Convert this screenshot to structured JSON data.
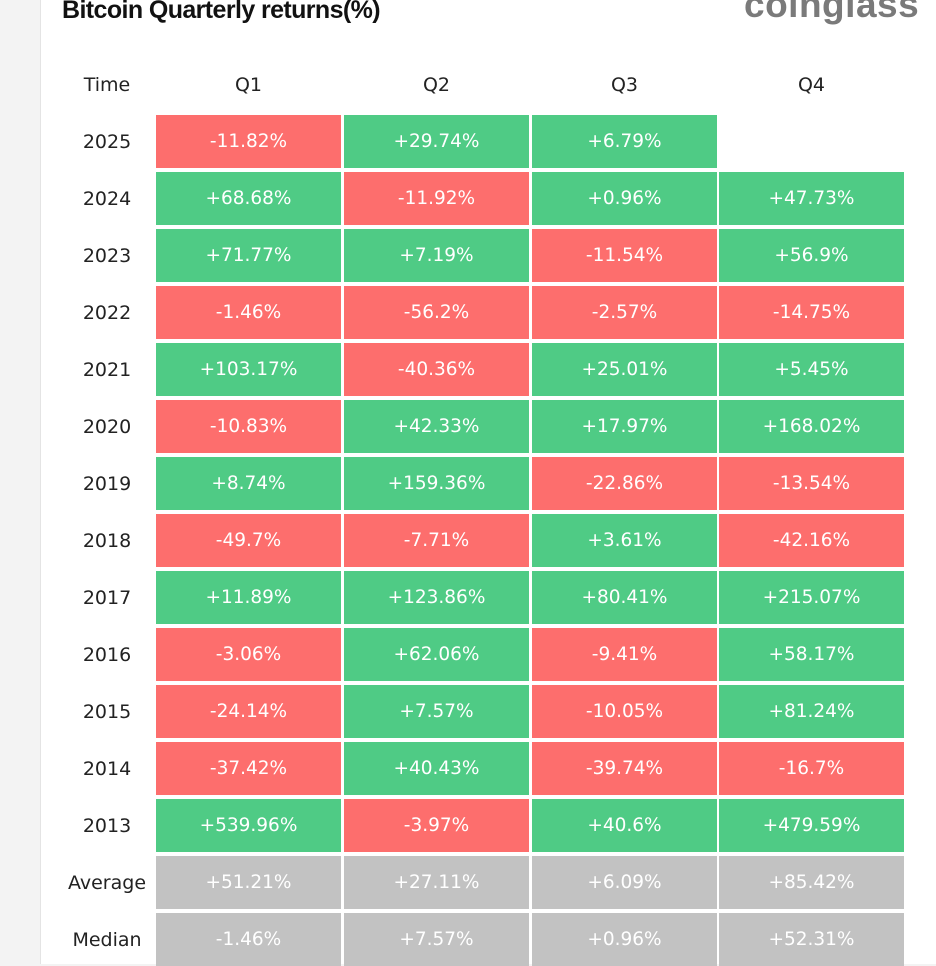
{
  "header": {
    "title": "Bitcoin Quarterly returns(%)",
    "logo_text": "coinglass"
  },
  "colors": {
    "positive": "#4fcb85",
    "negative": "#fd6e6d",
    "summary": "#c2c2c2"
  },
  "chart_data": {
    "type": "table",
    "title": "Bitcoin Quarterly returns(%)",
    "row_header_label": "Time",
    "columns": [
      "Q1",
      "Q2",
      "Q3",
      "Q4"
    ],
    "rows": [
      {
        "label": "2025",
        "cells": [
          "-11.82%",
          "+29.74%",
          "+6.79%",
          null
        ]
      },
      {
        "label": "2024",
        "cells": [
          "+68.68%",
          "-11.92%",
          "+0.96%",
          "+47.73%"
        ]
      },
      {
        "label": "2023",
        "cells": [
          "+71.77%",
          "+7.19%",
          "-11.54%",
          "+56.9%"
        ]
      },
      {
        "label": "2022",
        "cells": [
          "-1.46%",
          "-56.2%",
          "-2.57%",
          "-14.75%"
        ]
      },
      {
        "label": "2021",
        "cells": [
          "+103.17%",
          "-40.36%",
          "+25.01%",
          "+5.45%"
        ]
      },
      {
        "label": "2020",
        "cells": [
          "-10.83%",
          "+42.33%",
          "+17.97%",
          "+168.02%"
        ]
      },
      {
        "label": "2019",
        "cells": [
          "+8.74%",
          "+159.36%",
          "-22.86%",
          "-13.54%"
        ]
      },
      {
        "label": "2018",
        "cells": [
          "-49.7%",
          "-7.71%",
          "+3.61%",
          "-42.16%"
        ]
      },
      {
        "label": "2017",
        "cells": [
          "+11.89%",
          "+123.86%",
          "+80.41%",
          "+215.07%"
        ]
      },
      {
        "label": "2016",
        "cells": [
          "-3.06%",
          "+62.06%",
          "-9.41%",
          "+58.17%"
        ]
      },
      {
        "label": "2015",
        "cells": [
          "-24.14%",
          "+7.57%",
          "-10.05%",
          "+81.24%"
        ]
      },
      {
        "label": "2014",
        "cells": [
          "-37.42%",
          "+40.43%",
          "-39.74%",
          "-16.7%"
        ]
      },
      {
        "label": "2013",
        "cells": [
          "+539.96%",
          "-3.97%",
          "+40.6%",
          "+479.59%"
        ]
      }
    ],
    "summary_rows": [
      {
        "label": "Average",
        "cells": [
          "+51.21%",
          "+27.11%",
          "+6.09%",
          "+85.42%"
        ]
      },
      {
        "label": "Median",
        "cells": [
          "-1.46%",
          "+7.57%",
          "+0.96%",
          "+52.31%"
        ]
      }
    ]
  }
}
